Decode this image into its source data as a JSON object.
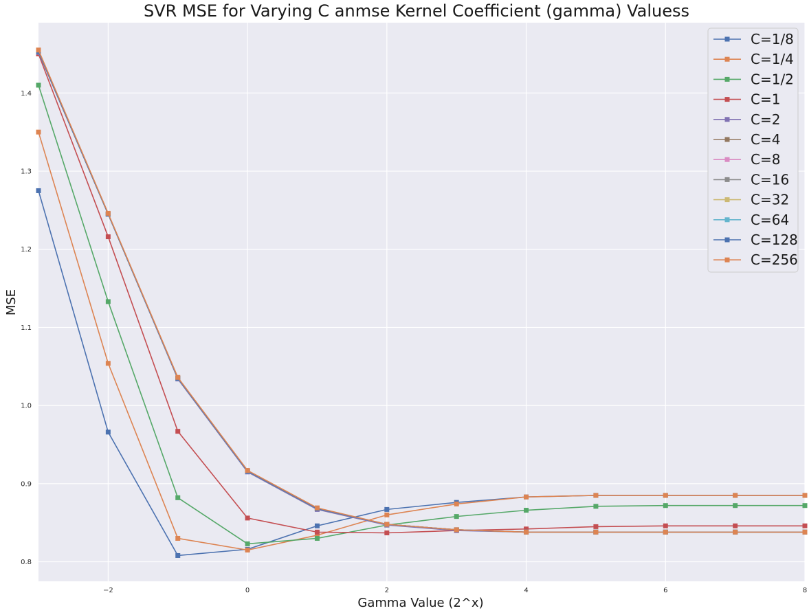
{
  "chart_data": {
    "type": "line",
    "title": "SVR MSE for Varying C anmse Kernel Coefficient (gamma) Valuess",
    "xlabel": "Gamma Value (2^x)",
    "ylabel": "MSE",
    "xlim": [
      -3,
      8
    ],
    "ylim": [
      0.775,
      1.49
    ],
    "x_ticks": [
      -2,
      0,
      2,
      4,
      6,
      8
    ],
    "y_ticks": [
      0.8,
      0.9,
      1.0,
      1.1,
      1.2,
      1.3,
      1.4
    ],
    "x_tick_labels": [
      "−2",
      "0",
      "2",
      "4",
      "6",
      "8"
    ],
    "y_tick_labels": [
      "0.8",
      "0.9",
      "1.0",
      "1.1",
      "1.2",
      "1.3",
      "1.4"
    ],
    "grid": true,
    "legend_position": "top-right",
    "marker": "square",
    "background_color": "#eaeaf2",
    "grid_color": "#ffffff",
    "x": [
      -3,
      -2,
      -1,
      0,
      1,
      2,
      3,
      4,
      5,
      6,
      7,
      8
    ],
    "series": [
      {
        "name": "C=1/8",
        "color": "#4c72b0",
        "values": [
          1.275,
          0.966,
          0.808,
          0.816,
          0.846,
          0.867,
          0.876,
          0.883,
          0.885,
          0.885,
          0.885,
          0.885
        ]
      },
      {
        "name": "C=1/4",
        "color": "#dd8452",
        "values": [
          1.35,
          1.054,
          0.83,
          0.815,
          0.834,
          0.86,
          0.874,
          0.883,
          0.885,
          0.885,
          0.885,
          0.885
        ]
      },
      {
        "name": "C=1/2",
        "color": "#55a868",
        "values": [
          1.41,
          1.133,
          0.882,
          0.823,
          0.83,
          0.847,
          0.858,
          0.866,
          0.871,
          0.872,
          0.872,
          0.872
        ]
      },
      {
        "name": "C=1",
        "color": "#c44e52",
        "values": [
          1.45,
          1.216,
          0.967,
          0.856,
          0.838,
          0.837,
          0.84,
          0.842,
          0.845,
          0.846,
          0.846,
          0.846
        ]
      },
      {
        "name": "C=2",
        "color": "#8172b3",
        "values": [
          1.452,
          1.245,
          1.034,
          0.915,
          0.867,
          0.847,
          0.84,
          0.838,
          0.838,
          0.838,
          0.838,
          0.838
        ]
      },
      {
        "name": "C=4",
        "color": "#937860",
        "values": [
          1.453,
          1.245,
          1.035,
          0.916,
          0.868,
          0.848,
          0.841,
          0.838,
          0.838,
          0.838,
          0.838,
          0.838
        ]
      },
      {
        "name": "C=8",
        "color": "#da8bc3",
        "values": [
          1.453,
          1.245,
          1.035,
          0.916,
          0.868,
          0.848,
          0.841,
          0.838,
          0.838,
          0.838,
          0.838,
          0.838
        ]
      },
      {
        "name": "C=16",
        "color": "#8c8c8c",
        "values": [
          1.453,
          1.245,
          1.035,
          0.916,
          0.868,
          0.848,
          0.841,
          0.838,
          0.838,
          0.838,
          0.838,
          0.838
        ]
      },
      {
        "name": "C=32",
        "color": "#ccb974",
        "values": [
          1.453,
          1.245,
          1.035,
          0.916,
          0.868,
          0.848,
          0.841,
          0.838,
          0.838,
          0.838,
          0.838,
          0.838
        ]
      },
      {
        "name": "C=64",
        "color": "#64b5cd",
        "values": [
          1.453,
          1.245,
          1.035,
          0.916,
          0.868,
          0.848,
          0.841,
          0.838,
          0.838,
          0.838,
          0.838,
          0.838
        ]
      },
      {
        "name": "C=128",
        "color": "#4c72b0",
        "values": [
          1.453,
          1.245,
          1.035,
          0.916,
          0.868,
          0.848,
          0.841,
          0.838,
          0.838,
          0.838,
          0.838,
          0.838
        ]
      },
      {
        "name": "C=256",
        "color": "#dd8452",
        "values": [
          1.455,
          1.246,
          1.036,
          0.917,
          0.869,
          0.848,
          0.841,
          0.838,
          0.838,
          0.838,
          0.838,
          0.838
        ]
      }
    ]
  }
}
